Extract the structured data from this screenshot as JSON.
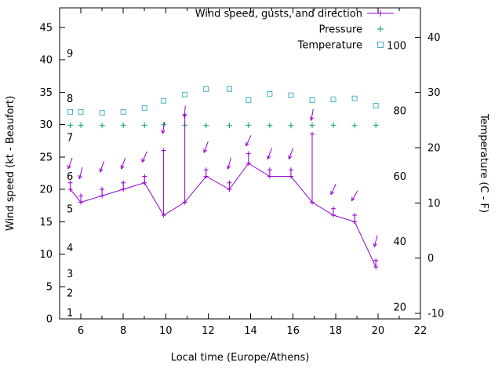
{
  "chart_data": {
    "type": "line",
    "title": "",
    "xlabel": "Local time (Europe/Athens)",
    "ylabel_left": "Wind speed (kt - Beaufort)",
    "ylabel_right": "Temperature (C - F)",
    "legend": [
      {
        "label": "Wind speed, gusts, and direction",
        "series": "wind",
        "marker": "line-plus",
        "color": "#9400d3"
      },
      {
        "label": "Pressure",
        "series": "pressure",
        "marker": "plus",
        "color": "#009e73"
      },
      {
        "label": "Temperature",
        "series": "temperature",
        "marker": "square",
        "color": "#45b0c4"
      }
    ],
    "axes": {
      "x": {
        "range": [
          5,
          22
        ],
        "major_ticks": [
          6,
          8,
          10,
          12,
          14,
          16,
          18,
          20,
          22
        ],
        "minor_step": 1
      },
      "left_kt": {
        "range": [
          0,
          48
        ],
        "ticks": [
          0,
          5,
          10,
          15,
          20,
          25,
          30,
          35,
          40,
          45
        ]
      },
      "left_beaufort": {
        "labels": [
          "1",
          "2",
          "3",
          "4",
          "5",
          "6",
          "7",
          "8",
          "9"
        ],
        "kt_positions": [
          1,
          4,
          7,
          11,
          17,
          22,
          28,
          34,
          41
        ]
      },
      "right_c": {
        "range": [
          -11,
          45.3
        ],
        "ticks": [
          -10,
          0,
          10,
          20,
          30,
          40
        ]
      },
      "right_f": {
        "range": [
          16.4,
          111.5
        ],
        "ticks": [
          20,
          40,
          60,
          80,
          100
        ]
      }
    },
    "series": {
      "wind": {
        "name": "Wind speed, gusts, and direction",
        "color": "#9400d3",
        "axis": "left_kt",
        "x": [
          5.5,
          6.0,
          7.0,
          8.0,
          9.0,
          9.9,
          10.9,
          11.9,
          13.0,
          13.9,
          14.9,
          15.9,
          16.9,
          17.9,
          18.9,
          19.9
        ],
        "speed_kt": [
          20,
          18,
          19,
          20,
          21,
          16,
          18,
          22,
          20,
          24,
          22,
          22,
          18,
          16,
          15,
          8
        ],
        "gust_kt": [
          21,
          19,
          20,
          21,
          22,
          26,
          31.5,
          23,
          21,
          25.5,
          23,
          23,
          28.5,
          17,
          16,
          9
        ],
        "arrow_y_kt": [
          24,
          22.5,
          23.5,
          24,
          25,
          29.5,
          32,
          26.5,
          24,
          27.5,
          25.5,
          25.5,
          31.5,
          20,
          19,
          12
        ],
        "arrow_dir_deg": [
          200,
          195,
          200,
          200,
          205,
          190,
          185,
          200,
          195,
          205,
          200,
          200,
          190,
          205,
          210,
          195
        ]
      },
      "pressure": {
        "name": "Pressure",
        "color": "#009e73",
        "axis": "left_kt",
        "x": [
          5.5,
          6.0,
          7.0,
          8.0,
          9.0,
          9.9,
          10.9,
          11.9,
          13.0,
          13.9,
          14.9,
          15.9,
          16.9,
          17.9,
          18.9,
          19.9
        ],
        "values": [
          29.9,
          29.9,
          29.85,
          29.9,
          29.9,
          29.95,
          29.9,
          29.85,
          29.85,
          29.9,
          29.85,
          29.85,
          29.9,
          29.9,
          29.85,
          29.9
        ]
      },
      "temperature": {
        "name": "Temperature",
        "color": "#45b0c4",
        "axis": "right_f",
        "x": [
          5.5,
          6.0,
          7.0,
          8.0,
          9.0,
          9.9,
          10.9,
          11.9,
          13.0,
          13.9,
          14.9,
          15.9,
          16.9,
          17.9,
          18.9,
          19.9
        ],
        "values_f": [
          79.7,
          79.7,
          79.4,
          79.7,
          80.9,
          83.1,
          85.0,
          86.7,
          86.7,
          83.3,
          85.2,
          84.8,
          83.3,
          83.5,
          83.8,
          81.6
        ]
      }
    }
  }
}
